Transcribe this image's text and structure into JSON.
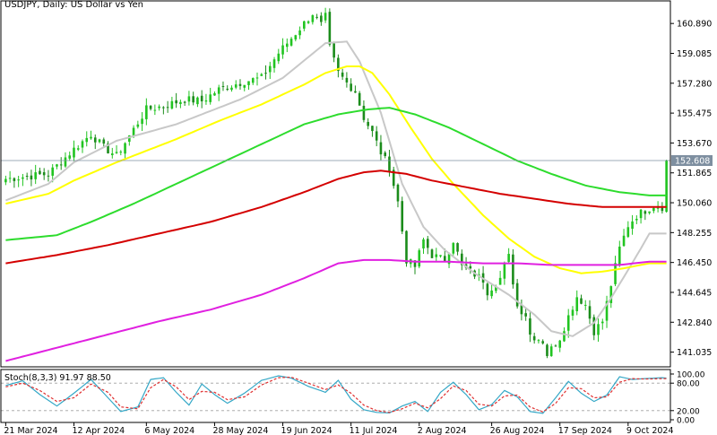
{
  "header": {
    "symbol_line": "USDJPY, Daily:  US Dollar vs Yen"
  },
  "colors": {
    "up_candle": "#21c421",
    "down_candle": "#1b8c1b",
    "ma_gray": "#c8c8c8",
    "ma_yellow": "#ffff00",
    "ma_green": "#2ddc2d",
    "ma_red": "#d40000",
    "ma_magenta": "#e020e0",
    "price_line": "#7e8fa0",
    "price_tag_bg": "#7e8fa0",
    "stoch_main": "#35a8c7",
    "stoch_signal": "#e03030"
  },
  "chart_data": [
    {
      "type": "candlestick",
      "title": "USDJPY, Daily:  US Dollar vs Yen",
      "symbol": "USDJPY",
      "timeframe": "Daily",
      "ylim": [
        140.2,
        162.2
      ],
      "y_ticks": [
        "160.890",
        "159.085",
        "157.280",
        "155.475",
        "153.670",
        "151.865",
        "150.060",
        "148.255",
        "146.450",
        "144.645",
        "142.840",
        "141.035"
      ],
      "y_tick_values": [
        160.89,
        159.085,
        157.28,
        155.475,
        153.67,
        151.865,
        150.06,
        148.255,
        146.45,
        144.645,
        142.84,
        141.035
      ],
      "x_ticks": [
        "21 Mar 2024",
        "12 Apr 2024",
        "6 May 2024",
        "28 May 2024",
        "19 Jun 2024",
        "11 Jul 2024",
        "2 Aug 2024",
        "26 Aug 2024",
        "17 Sep 2024",
        "9 Oct 2024"
      ],
      "x_tick_index": [
        0,
        16,
        33,
        49,
        65,
        81,
        97,
        114,
        130,
        146
      ],
      "current_price": 152.608,
      "current_price_label": "152.608",
      "bar_count": 156,
      "close_keyframes": [
        [
          0,
          151.5
        ],
        [
          10,
          151.8
        ],
        [
          16,
          153.3
        ],
        [
          20,
          154.2
        ],
        [
          23,
          153.4
        ],
        [
          26,
          152.9
        ],
        [
          30,
          154.5
        ],
        [
          33,
          155.7
        ],
        [
          37,
          155.9
        ],
        [
          42,
          156.3
        ],
        [
          46,
          156.2
        ],
        [
          50,
          156.9
        ],
        [
          56,
          157.4
        ],
        [
          60,
          157.6
        ],
        [
          64,
          159.1
        ],
        [
          68,
          160.3
        ],
        [
          72,
          161.5
        ],
        [
          74,
          160.8
        ],
        [
          75,
          161.3
        ],
        [
          76,
          159.4
        ],
        [
          78,
          157.9
        ],
        [
          80,
          157.3
        ],
        [
          82,
          156.8
        ],
        [
          84,
          155.2
        ],
        [
          86,
          154.3
        ],
        [
          88,
          153.1
        ],
        [
          90,
          152.2
        ],
        [
          92,
          150.1
        ],
        [
          94,
          146.6
        ],
        [
          96,
          146.2
        ],
        [
          98,
          147.8
        ],
        [
          100,
          146.9
        ],
        [
          103,
          146.6
        ],
        [
          105,
          147.8
        ],
        [
          107,
          146.2
        ],
        [
          109,
          145.9
        ],
        [
          112,
          145.4
        ],
        [
          113,
          144.7
        ],
        [
          116,
          145.5
        ],
        [
          117,
          146.2
        ],
        [
          118,
          146.8
        ],
        [
          120,
          143.8
        ],
        [
          122,
          143.3
        ],
        [
          123,
          142.1
        ],
        [
          126,
          141.7
        ],
        [
          127,
          140.9
        ],
        [
          130,
          141.9
        ],
        [
          132,
          143.2
        ],
        [
          134,
          144.4
        ],
        [
          136,
          143.9
        ],
        [
          138,
          142.3
        ],
        [
          140,
          142.9
        ],
        [
          142,
          145.1
        ],
        [
          144,
          147.3
        ],
        [
          146,
          148.7
        ],
        [
          148,
          149.3
        ],
        [
          150,
          149.6
        ],
        [
          152,
          149.9
        ],
        [
          154,
          149.8
        ],
        [
          156,
          149.6
        ],
        [
          158,
          150.7
        ],
        [
          160,
          151.6
        ],
        [
          161,
          152.6
        ]
      ],
      "moving_averages": [
        {
          "name": "gray",
          "keyframes": [
            [
              0,
              150.2
            ],
            [
              10,
              151.2
            ],
            [
              16,
              152.5
            ],
            [
              26,
              153.8
            ],
            [
              40,
              154.8
            ],
            [
              55,
              156.3
            ],
            [
              65,
              157.6
            ],
            [
              75,
              159.7
            ],
            [
              80,
              159.8
            ],
            [
              83,
              158.6
            ],
            [
              88,
              155.5
            ],
            [
              93,
              151.2
            ],
            [
              98,
              148.6
            ],
            [
              103,
              147.2
            ],
            [
              110,
              145.8
            ],
            [
              118,
              144.5
            ],
            [
              124,
              143.3
            ],
            [
              128,
              142.3
            ],
            [
              133,
              142.0
            ],
            [
              138,
              142.8
            ],
            [
              142,
              144.3
            ],
            [
              146,
              146.0
            ],
            [
              149,
              147.3
            ],
            [
              151,
              148.2
            ]
          ]
        },
        {
          "name": "yellow",
          "keyframes": [
            [
              0,
              150.0
            ],
            [
              10,
              150.6
            ],
            [
              16,
              151.4
            ],
            [
              26,
              152.5
            ],
            [
              40,
              153.9
            ],
            [
              50,
              155.0
            ],
            [
              60,
              156.0
            ],
            [
              70,
              157.2
            ],
            [
              75,
              157.9
            ],
            [
              80,
              158.3
            ],
            [
              83,
              158.3
            ],
            [
              86,
              157.9
            ],
            [
              90,
              156.6
            ],
            [
              95,
              154.6
            ],
            [
              100,
              152.7
            ],
            [
              105,
              151.2
            ],
            [
              112,
              149.3
            ],
            [
              118,
              147.9
            ],
            [
              124,
              146.8
            ],
            [
              130,
              146.1
            ],
            [
              135,
              145.8
            ],
            [
              140,
              145.9
            ],
            [
              145,
              146.1
            ],
            [
              151,
              146.4
            ]
          ]
        },
        {
          "name": "green",
          "keyframes": [
            [
              0,
              147.8
            ],
            [
              12,
              148.1
            ],
            [
              20,
              148.9
            ],
            [
              30,
              150.0
            ],
            [
              40,
              151.2
            ],
            [
              50,
              152.4
            ],
            [
              60,
              153.6
            ],
            [
              70,
              154.8
            ],
            [
              78,
              155.4
            ],
            [
              85,
              155.7
            ],
            [
              90,
              155.8
            ],
            [
              96,
              155.4
            ],
            [
              104,
              154.6
            ],
            [
              112,
              153.6
            ],
            [
              120,
              152.6
            ],
            [
              128,
              151.8
            ],
            [
              136,
              151.1
            ],
            [
              144,
              150.7
            ],
            [
              151,
              150.5
            ]
          ]
        },
        {
          "name": "red",
          "keyframes": [
            [
              0,
              146.4
            ],
            [
              12,
              146.9
            ],
            [
              24,
              147.5
            ],
            [
              36,
              148.2
            ],
            [
              48,
              148.9
            ],
            [
              60,
              149.8
            ],
            [
              70,
              150.7
            ],
            [
              78,
              151.5
            ],
            [
              84,
              151.9
            ],
            [
              88,
              152.0
            ],
            [
              94,
              151.8
            ],
            [
              100,
              151.4
            ],
            [
              108,
              151.0
            ],
            [
              116,
              150.6
            ],
            [
              124,
              150.3
            ],
            [
              132,
              150.0
            ],
            [
              140,
              149.8
            ],
            [
              151,
              149.8
            ]
          ]
        },
        {
          "name": "magenta",
          "keyframes": [
            [
              0,
              140.5
            ],
            [
              12,
              141.3
            ],
            [
              24,
              142.1
            ],
            [
              36,
              142.9
            ],
            [
              48,
              143.6
            ],
            [
              60,
              144.5
            ],
            [
              70,
              145.5
            ],
            [
              78,
              146.4
            ],
            [
              84,
              146.6
            ],
            [
              90,
              146.6
            ],
            [
              96,
              146.5
            ],
            [
              104,
              146.5
            ],
            [
              112,
              146.4
            ],
            [
              120,
              146.4
            ],
            [
              128,
              146.3
            ],
            [
              136,
              146.3
            ],
            [
              144,
              146.3
            ],
            [
              151,
              146.5
            ]
          ]
        }
      ]
    },
    {
      "type": "line",
      "title": "Stoch(8,3,3) 91.97 88.50",
      "ylim": [
        0,
        100
      ],
      "levels": [
        80,
        20
      ],
      "y_ticks": [
        "100.00",
        "80.00",
        "20.00",
        "0.00"
      ],
      "y_tick_values": [
        100,
        80,
        20,
        0
      ],
      "main_value": 91.97,
      "signal_value": 88.5,
      "main_keyframes": [
        [
          0,
          75
        ],
        [
          4,
          85
        ],
        [
          8,
          55
        ],
        [
          12,
          30
        ],
        [
          16,
          58
        ],
        [
          20,
          88
        ],
        [
          24,
          48
        ],
        [
          27,
          18
        ],
        [
          31,
          28
        ],
        [
          34,
          88
        ],
        [
          37,
          92
        ],
        [
          40,
          60
        ],
        [
          43,
          32
        ],
        [
          46,
          78
        ],
        [
          49,
          55
        ],
        [
          52,
          36
        ],
        [
          56,
          58
        ],
        [
          60,
          86
        ],
        [
          64,
          96
        ],
        [
          67,
          91
        ],
        [
          71,
          73
        ],
        [
          75,
          60
        ],
        [
          78,
          86
        ],
        [
          81,
          45
        ],
        [
          84,
          22
        ],
        [
          87,
          16
        ],
        [
          90,
          15
        ],
        [
          93,
          30
        ],
        [
          96,
          40
        ],
        [
          99,
          18
        ],
        [
          102,
          60
        ],
        [
          105,
          82
        ],
        [
          108,
          55
        ],
        [
          111,
          22
        ],
        [
          114,
          33
        ],
        [
          117,
          64
        ],
        [
          120,
          50
        ],
        [
          123,
          18
        ],
        [
          126,
          14
        ],
        [
          129,
          48
        ],
        [
          132,
          84
        ],
        [
          135,
          58
        ],
        [
          138,
          40
        ],
        [
          141,
          54
        ],
        [
          144,
          94
        ],
        [
          147,
          88
        ],
        [
          150,
          90
        ],
        [
          154,
          92
        ],
        [
          157,
          89
        ],
        [
          161,
          92
        ]
      ],
      "signal_keyframes": [
        [
          0,
          72
        ],
        [
          4,
          80
        ],
        [
          8,
          64
        ],
        [
          12,
          40
        ],
        [
          16,
          48
        ],
        [
          20,
          78
        ],
        [
          24,
          60
        ],
        [
          27,
          28
        ],
        [
          31,
          24
        ],
        [
          34,
          70
        ],
        [
          37,
          88
        ],
        [
          40,
          72
        ],
        [
          43,
          44
        ],
        [
          46,
          62
        ],
        [
          49,
          60
        ],
        [
          52,
          44
        ],
        [
          56,
          50
        ],
        [
          60,
          76
        ],
        [
          64,
          92
        ],
        [
          67,
          93
        ],
        [
          71,
          80
        ],
        [
          75,
          66
        ],
        [
          78,
          76
        ],
        [
          81,
          58
        ],
        [
          84,
          32
        ],
        [
          87,
          20
        ],
        [
          90,
          16
        ],
        [
          93,
          24
        ],
        [
          96,
          36
        ],
        [
          99,
          26
        ],
        [
          102,
          46
        ],
        [
          105,
          74
        ],
        [
          108,
          64
        ],
        [
          111,
          34
        ],
        [
          114,
          30
        ],
        [
          117,
          52
        ],
        [
          120,
          54
        ],
        [
          123,
          28
        ],
        [
          126,
          17
        ],
        [
          129,
          36
        ],
        [
          132,
          70
        ],
        [
          135,
          68
        ],
        [
          138,
          48
        ],
        [
          141,
          50
        ],
        [
          144,
          82
        ],
        [
          147,
          90
        ],
        [
          150,
          89
        ],
        [
          154,
          90
        ],
        [
          157,
          90
        ],
        [
          161,
          88
        ]
      ]
    }
  ],
  "stoch_label": "Stoch(8,3,3) 91.97 88.50"
}
